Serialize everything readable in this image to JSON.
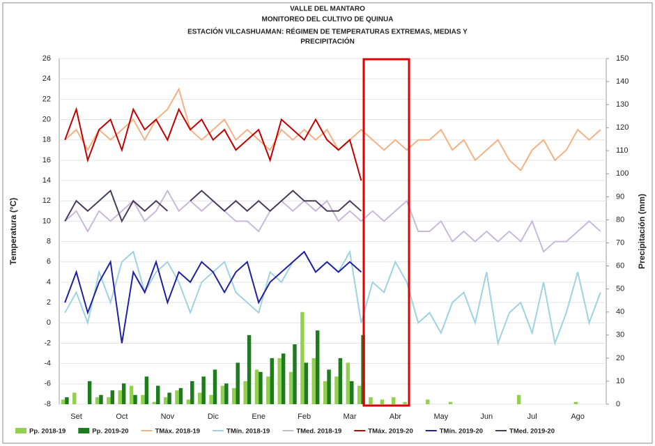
{
  "chart_data": {
    "type": "line",
    "title": "VALLE DEL MANTARO",
    "subtitle": "MONITOREO DEL CULTIVO DE QUINUA",
    "subtitle2": "ESTACIÓN VILCASHUAMAN: RÉGIMEN DE TEMPERATURAS EXTREMAS, MEDIAS Y",
    "subtitle3": "PRECIPITACIÓN",
    "ylabel": "Temperatura (°C)",
    "y2label": "Precipitación (mm)",
    "categories": [
      null,
      "Set",
      null,
      null,
      null,
      "Oct",
      null,
      null,
      null,
      "Nov",
      null,
      null,
      null,
      "Dic",
      null,
      null,
      null,
      "Ene",
      null,
      null,
      null,
      "Feb",
      null,
      null,
      null,
      "Mar",
      null,
      null,
      null,
      "Abr",
      null,
      null,
      null,
      "May",
      null,
      null,
      null,
      "Jun",
      null,
      null,
      null,
      "Jul",
      null,
      null,
      null,
      "Ago",
      null,
      null
    ],
    "ylim": [
      -8,
      26
    ],
    "yticks": [
      -8,
      -6,
      -4,
      -2,
      0,
      2,
      4,
      6,
      8,
      10,
      12,
      14,
      16,
      18,
      20,
      22,
      24,
      26
    ],
    "y2lim": [
      0,
      150
    ],
    "y2ticks": [
      0,
      10,
      20,
      30,
      40,
      50,
      60,
      70,
      80,
      90,
      100,
      110,
      120,
      130,
      140,
      150
    ],
    "grid": true,
    "series": [
      {
        "name": "Pp. 2018-19",
        "type": "bar",
        "axis": "y2",
        "color": "#92d050",
        "values": [
          2,
          5,
          0,
          3,
          3,
          6,
          8,
          4,
          1,
          3,
          6,
          2,
          5,
          4,
          8,
          7,
          10,
          15,
          12,
          20,
          14,
          40,
          20,
          10,
          12,
          18,
          8,
          3,
          2,
          3,
          1,
          0,
          2,
          0,
          1,
          0,
          0,
          0,
          0,
          0,
          4,
          0,
          0,
          0,
          0,
          1,
          0,
          0
        ]
      },
      {
        "name": "Pp. 2019-20",
        "type": "bar",
        "axis": "y2",
        "color": "#1e7b1e",
        "values": [
          3,
          0,
          10,
          4,
          6,
          9,
          4,
          12,
          8,
          5,
          7,
          10,
          12,
          15,
          9,
          18,
          30,
          14,
          20,
          22,
          26,
          18,
          32,
          15,
          20,
          10,
          30,
          null,
          null,
          null,
          null,
          null,
          null,
          null,
          null,
          null,
          null,
          null,
          null,
          null,
          null,
          null,
          null,
          null,
          null,
          null,
          null,
          null
        ]
      },
      {
        "name": "TMáx. 2018-19",
        "type": "line",
        "color": "#f4b183",
        "values": [
          18,
          19,
          17,
          19,
          18,
          19,
          20,
          18,
          20,
          21,
          23,
          19,
          18,
          19,
          20,
          18,
          19,
          18,
          17,
          19,
          18,
          19,
          18,
          19,
          17,
          18,
          19,
          18,
          17,
          18,
          17,
          18,
          18,
          19,
          17,
          18,
          16,
          17,
          18,
          16,
          15,
          17,
          18,
          16,
          17,
          19,
          18,
          19
        ]
      },
      {
        "name": "TMín. 2018-19",
        "type": "line",
        "color": "#9dd3e0",
        "values": [
          1,
          3,
          0,
          5,
          2,
          6,
          7,
          3,
          5,
          6,
          4,
          1,
          4,
          5,
          6,
          3,
          2,
          1,
          5,
          4,
          6,
          7,
          5,
          6,
          5,
          7,
          0,
          4,
          3,
          6,
          4,
          0,
          1,
          -1,
          2,
          3,
          0,
          5,
          -2,
          1,
          2,
          -1,
          4,
          -2,
          1,
          5,
          0,
          3
        ]
      },
      {
        "name": "TMed. 2018-19",
        "type": "line",
        "color": "#c9b8dc",
        "values": [
          10,
          11,
          9,
          11,
          10,
          11,
          12,
          10,
          11,
          13,
          11,
          12,
          11,
          12,
          11,
          10,
          10,
          9,
          11,
          12,
          11,
          12,
          11,
          12,
          10,
          11,
          10,
          11,
          10,
          11,
          12,
          9,
          9,
          10,
          8,
          9,
          8,
          9,
          8,
          9,
          8,
          10,
          7,
          8,
          8,
          9,
          10,
          9
        ]
      },
      {
        "name": "TMáx. 2019-20",
        "type": "line",
        "color": "#c00000",
        "values": [
          18,
          21,
          16,
          19,
          20,
          17,
          21,
          19,
          20,
          18,
          21,
          19,
          20,
          18,
          19,
          17,
          18,
          19,
          16,
          20,
          19,
          18,
          20,
          18,
          17,
          18,
          14,
          null,
          null,
          null,
          null,
          null,
          null,
          null,
          null,
          null,
          null,
          null,
          null,
          null,
          null,
          null,
          null,
          null,
          null,
          null,
          null,
          null
        ]
      },
      {
        "name": "TMín. 2019-20",
        "type": "line",
        "color": "#1f1fa0",
        "values": [
          2,
          5,
          1,
          4,
          6,
          -2,
          5,
          3,
          6,
          2,
          5,
          4,
          6,
          5,
          3,
          5,
          6,
          2,
          4,
          5,
          6,
          7,
          5,
          6,
          5,
          6,
          5,
          null,
          null,
          null,
          null,
          null,
          null,
          null,
          null,
          null,
          null,
          null,
          null,
          null,
          null,
          null,
          null,
          null,
          null,
          null,
          null,
          null
        ]
      },
      {
        "name": "TMed. 2019-20",
        "type": "line",
        "color": "#4b3a5a",
        "values": [
          10,
          12,
          11,
          12,
          13,
          10,
          12,
          11,
          12,
          11,
          null,
          12,
          13,
          12,
          11,
          12,
          11,
          12,
          11,
          12,
          13,
          12,
          12,
          11,
          11,
          12,
          11,
          null,
          null,
          null,
          null,
          null,
          null,
          null,
          null,
          null,
          null,
          null,
          null,
          null,
          null,
          null,
          null,
          null,
          null,
          null,
          null,
          null
        ]
      }
    ]
  }
}
